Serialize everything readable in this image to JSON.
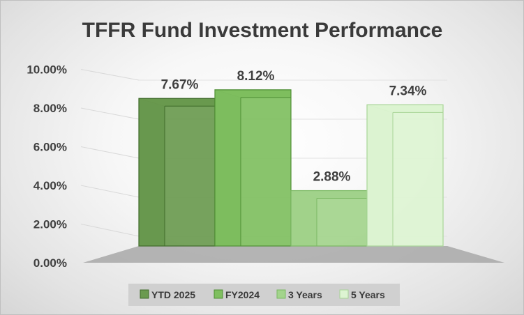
{
  "chart_data": {
    "type": "bar",
    "title": "TFFR Fund Investment Performance",
    "categories": [
      "YTD 2025",
      "FY2024",
      "3 Years",
      "5 Years"
    ],
    "values": [
      7.67,
      8.12,
      2.88,
      7.34
    ],
    "data_labels": [
      "7.67%",
      "8.12%",
      "2.88%",
      "7.34%"
    ],
    "ylim": [
      0,
      10
    ],
    "ytick_labels": [
      "0.00%",
      "2.00%",
      "4.00%",
      "6.00%",
      "8.00%",
      "10.00%"
    ],
    "grid": true,
    "legend_position": "bottom",
    "colors": {
      "front": [
        "#6a9a4f",
        "#7fbf5f",
        "#a3d48c",
        "#ddf4d2"
      ],
      "side": [
        "#557e3e",
        "#6aa74c",
        "#8fbf78",
        "#c7e2ba"
      ],
      "top": [
        "#5f8e45",
        "#6fad52",
        "#8fc07a",
        "#cbe8bf"
      ],
      "edge": [
        "#3f6b2a",
        "#4f8f35",
        "#7ab862",
        "#a8d596"
      ]
    }
  }
}
